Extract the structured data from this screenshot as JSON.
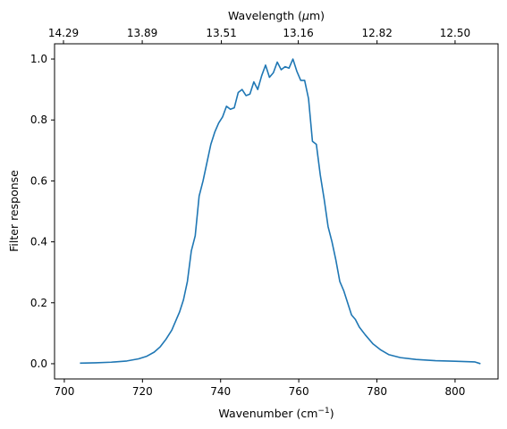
{
  "chart_data": {
    "type": "line",
    "xlabel": "Wavenumber (cm",
    "xlabel_sup": "−1",
    "xlabel_end": ")",
    "ylabel": "Filter response",
    "top_xlabel_prefix": "Wavelength (",
    "top_xlabel_mu": "μ",
    "top_xlabel_suffix": "m)",
    "xlim": [
      697.5,
      811
    ],
    "ylim": [
      -0.05,
      1.05
    ],
    "x_ticks": [
      700,
      720,
      740,
      760,
      780,
      800
    ],
    "x_tick_labels": [
      "700",
      "720",
      "740",
      "760",
      "780",
      "800"
    ],
    "y_ticks": [
      0.0,
      0.2,
      0.4,
      0.6,
      0.8,
      1.0
    ],
    "y_tick_labels": [
      "0.0",
      "0.2",
      "0.4",
      "0.6",
      "0.8",
      "1.0"
    ],
    "top_ticks": [
      {
        "wavelength": 14.29,
        "label": "14.29"
      },
      {
        "wavelength": 13.89,
        "label": "13.89"
      },
      {
        "wavelength": 13.51,
        "label": "13.51"
      },
      {
        "wavelength": 13.16,
        "label": "13.16"
      },
      {
        "wavelength": 12.82,
        "label": "12.82"
      },
      {
        "wavelength": 12.5,
        "label": "12.50"
      }
    ],
    "grid": false,
    "color": "#1f77b4",
    "series": [
      {
        "x": [
          704,
          708,
          712,
          716,
          719,
          721,
          723,
          724.5,
          726,
          727.5,
          728.5,
          729.5,
          730.5,
          731.5,
          732.5,
          733.5,
          734.5,
          735.5,
          736.5,
          737.5,
          738.5,
          739.5,
          740.5,
          741.5,
          742.5,
          743.5,
          744.5,
          745.5,
          746.5,
          747.5,
          748.5,
          749.5,
          750.5,
          751.5,
          752.5,
          753.5,
          754.5,
          755.5,
          756.5,
          757.5,
          758.5,
          759.5,
          760.5,
          761.5,
          762.5,
          763.5,
          764.5,
          765.5,
          766.5,
          767.5,
          768.5,
          769.5,
          770.5,
          771.5,
          772.5,
          773.5,
          774.5,
          775.5,
          777,
          779,
          781,
          783,
          786,
          790,
          795,
          800,
          805,
          806.5
        ],
        "y": [
          0.002,
          0.003,
          0.005,
          0.009,
          0.016,
          0.024,
          0.038,
          0.055,
          0.08,
          0.11,
          0.14,
          0.17,
          0.21,
          0.27,
          0.37,
          0.42,
          0.55,
          0.6,
          0.66,
          0.72,
          0.76,
          0.79,
          0.81,
          0.845,
          0.835,
          0.84,
          0.89,
          0.9,
          0.88,
          0.885,
          0.925,
          0.9,
          0.945,
          0.98,
          0.94,
          0.955,
          0.99,
          0.965,
          0.975,
          0.97,
          1.0,
          0.96,
          0.93,
          0.93,
          0.87,
          0.73,
          0.72,
          0.62,
          0.54,
          0.45,
          0.4,
          0.34,
          0.27,
          0.24,
          0.2,
          0.16,
          0.145,
          0.12,
          0.095,
          0.065,
          0.045,
          0.03,
          0.02,
          0.014,
          0.01,
          0.008,
          0.006,
          0.0
        ]
      }
    ]
  }
}
